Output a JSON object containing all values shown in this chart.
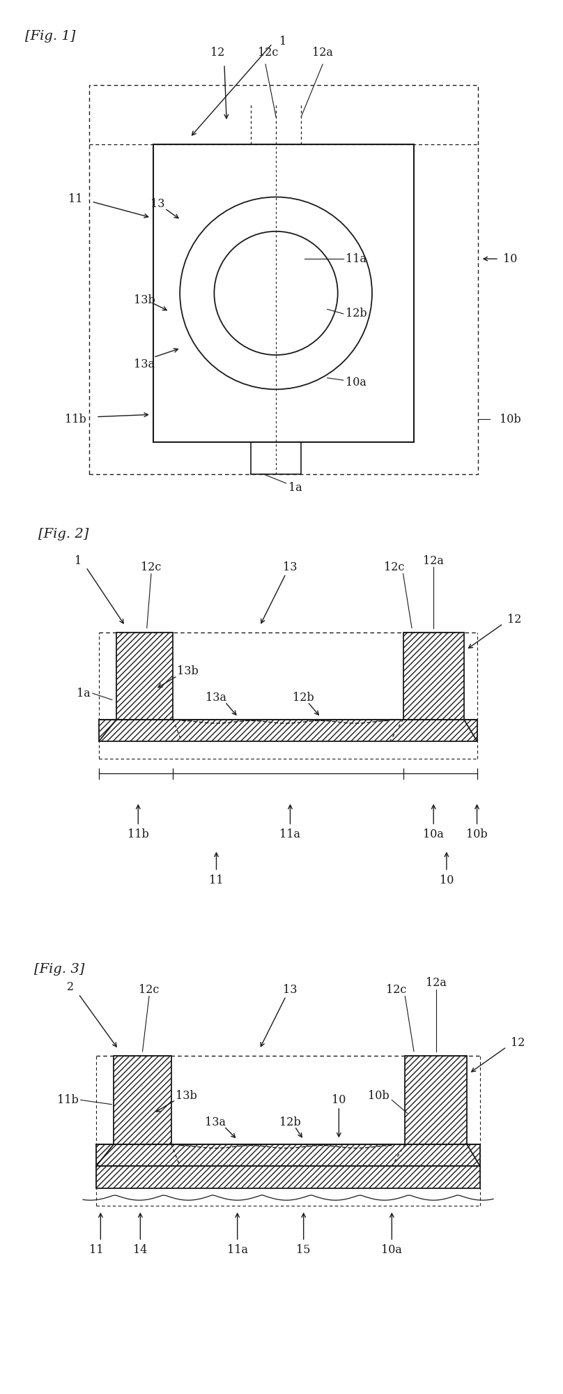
{
  "fig1_label": "[Fig. 1]",
  "fig2_label": "[Fig. 2]",
  "fig3_label": "[Fig. 3]",
  "bg_color": "#ffffff",
  "line_color": "#1a1a1a",
  "font_size_label": 14,
  "font_size_ref": 11.5
}
